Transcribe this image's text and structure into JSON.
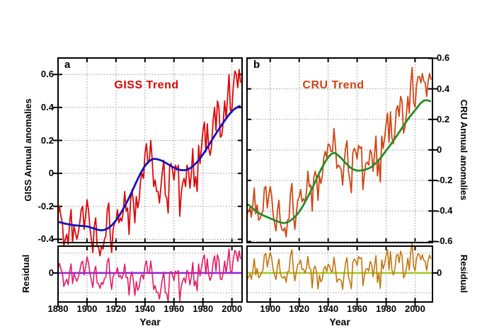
{
  "labels": {
    "panel_a_letter": "a",
    "panel_b_letter": "b",
    "giss_trend_title": "GISS Trend",
    "cru_trend_title": "CRU Trend",
    "giss_y_axis": "GISS Annual anomalies",
    "cru_y_axis": "CRU Annual anomalies",
    "residual_left": "Residual",
    "residual_right": "Residual",
    "year_a": "Year",
    "year_b": "Year"
  },
  "chart_data": {
    "type": "line",
    "description": "Two-panel comparison of GISS and CRU global annual temperature anomalies with smoothed trend lines and residual sub-panels",
    "grid": true,
    "panels": [
      {
        "id": "a",
        "letter": "a",
        "trend_label": "GISS Trend",
        "y_axis_label": "GISS Annual anomalies",
        "x_label": "Year",
        "residual_label": "Residual",
        "xlim": [
          1880,
          2007
        ],
        "ylim": [
          -0.42,
          0.7
        ],
        "xticks": [
          1880,
          1900,
          1920,
          1940,
          1960,
          1980,
          2000
        ],
        "yticks": [
          0.6,
          0.4,
          0.2,
          0,
          -0.2,
          -0.4
        ],
        "residual_ylim": [
          -0.293,
          0.271
        ],
        "residual_yticks": [
          0
        ],
        "residual_grid": [
          0.2,
          -0.2
        ],
        "colors": {
          "annual": "#dd0606",
          "trend": "#1414bd",
          "residual": "#e31b63",
          "residual_zero": "#8a2be2"
        },
        "annual": {
          "name": "GISS annual anomalies",
          "start_year": 1880,
          "values": [
            -0.25,
            -0.2,
            -0.26,
            -0.3,
            -0.44,
            -0.4,
            -0.37,
            -0.43,
            -0.3,
            -0.22,
            -0.42,
            -0.32,
            -0.36,
            -0.4,
            -0.36,
            -0.3,
            -0.22,
            -0.2,
            -0.34,
            -0.26,
            -0.16,
            -0.22,
            -0.33,
            -0.4,
            -0.48,
            -0.32,
            -0.27,
            -0.44,
            -0.45,
            -0.5,
            -0.44,
            -0.46,
            -0.4,
            -0.38,
            -0.22,
            -0.18,
            -0.38,
            -0.48,
            -0.34,
            -0.3,
            -0.29,
            -0.22,
            -0.3,
            -0.27,
            -0.29,
            -0.23,
            -0.11,
            -0.23,
            -0.21,
            -0.37,
            -0.17,
            -0.1,
            -0.17,
            -0.3,
            -0.14,
            -0.21,
            -0.16,
            -0.04,
            0.0,
            -0.03,
            0.12,
            0.18,
            0.06,
            0.08,
            0.2,
            0.08,
            -0.08,
            -0.04,
            -0.11,
            -0.11,
            -0.18,
            -0.08,
            0.01,
            0.08,
            -0.13,
            -0.15,
            -0.24,
            0.04,
            0.06,
            0.02,
            -0.04,
            0.05,
            0.02,
            0.05,
            -0.26,
            -0.12,
            -0.06,
            -0.03,
            -0.08,
            0.05,
            0.02,
            -0.09,
            0.0,
            0.15,
            -0.08,
            -0.02,
            -0.11,
            0.17,
            0.06,
            0.16,
            0.26,
            0.31,
            0.13,
            0.3,
            0.15,
            0.11,
            0.17,
            0.32,
            0.4,
            0.26,
            0.44,
            0.4,
            0.22,
            0.23,
            0.31,
            0.44,
            0.33,
            0.46,
            0.6,
            0.38,
            0.39,
            0.53,
            0.62,
            0.6,
            0.52,
            0.63,
            0.55
          ]
        },
        "trend_points": [
          [
            1880,
            -0.295
          ],
          [
            1885,
            -0.305
          ],
          [
            1890,
            -0.313
          ],
          [
            1895,
            -0.318
          ],
          [
            1900,
            -0.322
          ],
          [
            1905,
            -0.335
          ],
          [
            1910,
            -0.345
          ],
          [
            1915,
            -0.33
          ],
          [
            1920,
            -0.285
          ],
          [
            1925,
            -0.215
          ],
          [
            1930,
            -0.13
          ],
          [
            1935,
            -0.035
          ],
          [
            1940,
            0.045
          ],
          [
            1945,
            0.085
          ],
          [
            1950,
            0.082
          ],
          [
            1955,
            0.06
          ],
          [
            1960,
            0.035
          ],
          [
            1965,
            0.02
          ],
          [
            1970,
            0.026
          ],
          [
            1975,
            0.06
          ],
          [
            1980,
            0.115
          ],
          [
            1985,
            0.185
          ],
          [
            1990,
            0.255
          ],
          [
            1995,
            0.32
          ],
          [
            2000,
            0.375
          ],
          [
            2003,
            0.397
          ],
          [
            2006,
            0.41
          ]
        ]
      },
      {
        "id": "b",
        "letter": "b",
        "trend_label": "CRU Trend",
        "y_axis_label": "CRU Annual anomalies",
        "x_label": "Year",
        "residual_label": "Residual",
        "xlim": [
          1884,
          2012
        ],
        "ylim": [
          -0.607,
          0.602
        ],
        "xticks": [
          1900,
          1920,
          1940,
          1960,
          1980,
          2000
        ],
        "yticks": [
          0.6,
          0.4,
          0.2,
          0,
          -0.2,
          -0.4,
          -0.6
        ],
        "residual_ylim": [
          -0.293,
          0.271
        ],
        "residual_yticks": [
          0
        ],
        "residual_grid": [
          0.2,
          -0.2
        ],
        "colors": {
          "annual": "#cf4514",
          "trend": "#268c26",
          "residual": "#c1760e",
          "residual_zero": "#a5c62b"
        },
        "annual": {
          "name": "CRU annual anomalies",
          "start_year": 1884,
          "values": [
            -0.42,
            -0.4,
            -0.38,
            -0.44,
            -0.36,
            -0.25,
            -0.42,
            -0.36,
            -0.46,
            -0.45,
            -0.42,
            -0.4,
            -0.25,
            -0.24,
            -0.38,
            -0.3,
            -0.24,
            -0.3,
            -0.42,
            -0.48,
            -0.53,
            -0.4,
            -0.33,
            -0.48,
            -0.52,
            -0.53,
            -0.51,
            -0.57,
            -0.46,
            -0.45,
            -0.28,
            -0.22,
            -0.42,
            -0.52,
            -0.42,
            -0.33,
            -0.31,
            -0.26,
            -0.34,
            -0.32,
            -0.34,
            -0.28,
            -0.14,
            -0.24,
            -0.23,
            -0.4,
            -0.19,
            -0.14,
            -0.18,
            -0.33,
            -0.17,
            -0.22,
            -0.17,
            -0.05,
            -0.01,
            -0.05,
            0.04,
            0.03,
            -0.01,
            -0.01,
            0.14,
            0.03,
            -0.12,
            -0.1,
            -0.11,
            -0.13,
            -0.23,
            -0.09,
            0.01,
            0.06,
            -0.14,
            -0.2,
            -0.28,
            -0.02,
            0.01,
            -0.01,
            -0.06,
            0.03,
            0.01,
            0.02,
            -0.26,
            -0.16,
            -0.09,
            -0.08,
            -0.1,
            0.0,
            -0.02,
            -0.14,
            -0.03,
            0.09,
            -0.17,
            -0.07,
            -0.21,
            0.09,
            0.01,
            0.08,
            0.17,
            0.24,
            0.05,
            0.25,
            0.08,
            0.04,
            0.11,
            0.26,
            0.29,
            0.22,
            0.35,
            0.32,
            0.11,
            0.15,
            0.23,
            0.35,
            0.24,
            0.44,
            0.54,
            0.31,
            0.28,
            0.42,
            0.48,
            0.48,
            0.44,
            0.5,
            0.45,
            0.44,
            0.35,
            0.45,
            0.5,
            0.46
          ]
        },
        "trend_points": [
          [
            1884,
            -0.355
          ],
          [
            1890,
            -0.4
          ],
          [
            1895,
            -0.428
          ],
          [
            1900,
            -0.448
          ],
          [
            1905,
            -0.468
          ],
          [
            1910,
            -0.478
          ],
          [
            1915,
            -0.455
          ],
          [
            1920,
            -0.405
          ],
          [
            1925,
            -0.325
          ],
          [
            1930,
            -0.23
          ],
          [
            1935,
            -0.13
          ],
          [
            1940,
            -0.05
          ],
          [
            1944,
            -0.02
          ],
          [
            1948,
            -0.045
          ],
          [
            1952,
            -0.085
          ],
          [
            1956,
            -0.12
          ],
          [
            1960,
            -0.135
          ],
          [
            1965,
            -0.13
          ],
          [
            1970,
            -0.11
          ],
          [
            1975,
            -0.065
          ],
          [
            1980,
            -0.005
          ],
          [
            1985,
            0.06
          ],
          [
            1990,
            0.13
          ],
          [
            1995,
            0.2
          ],
          [
            2000,
            0.26
          ],
          [
            2005,
            0.315
          ],
          [
            2008,
            0.325
          ],
          [
            2011,
            0.318
          ]
        ]
      }
    ]
  }
}
